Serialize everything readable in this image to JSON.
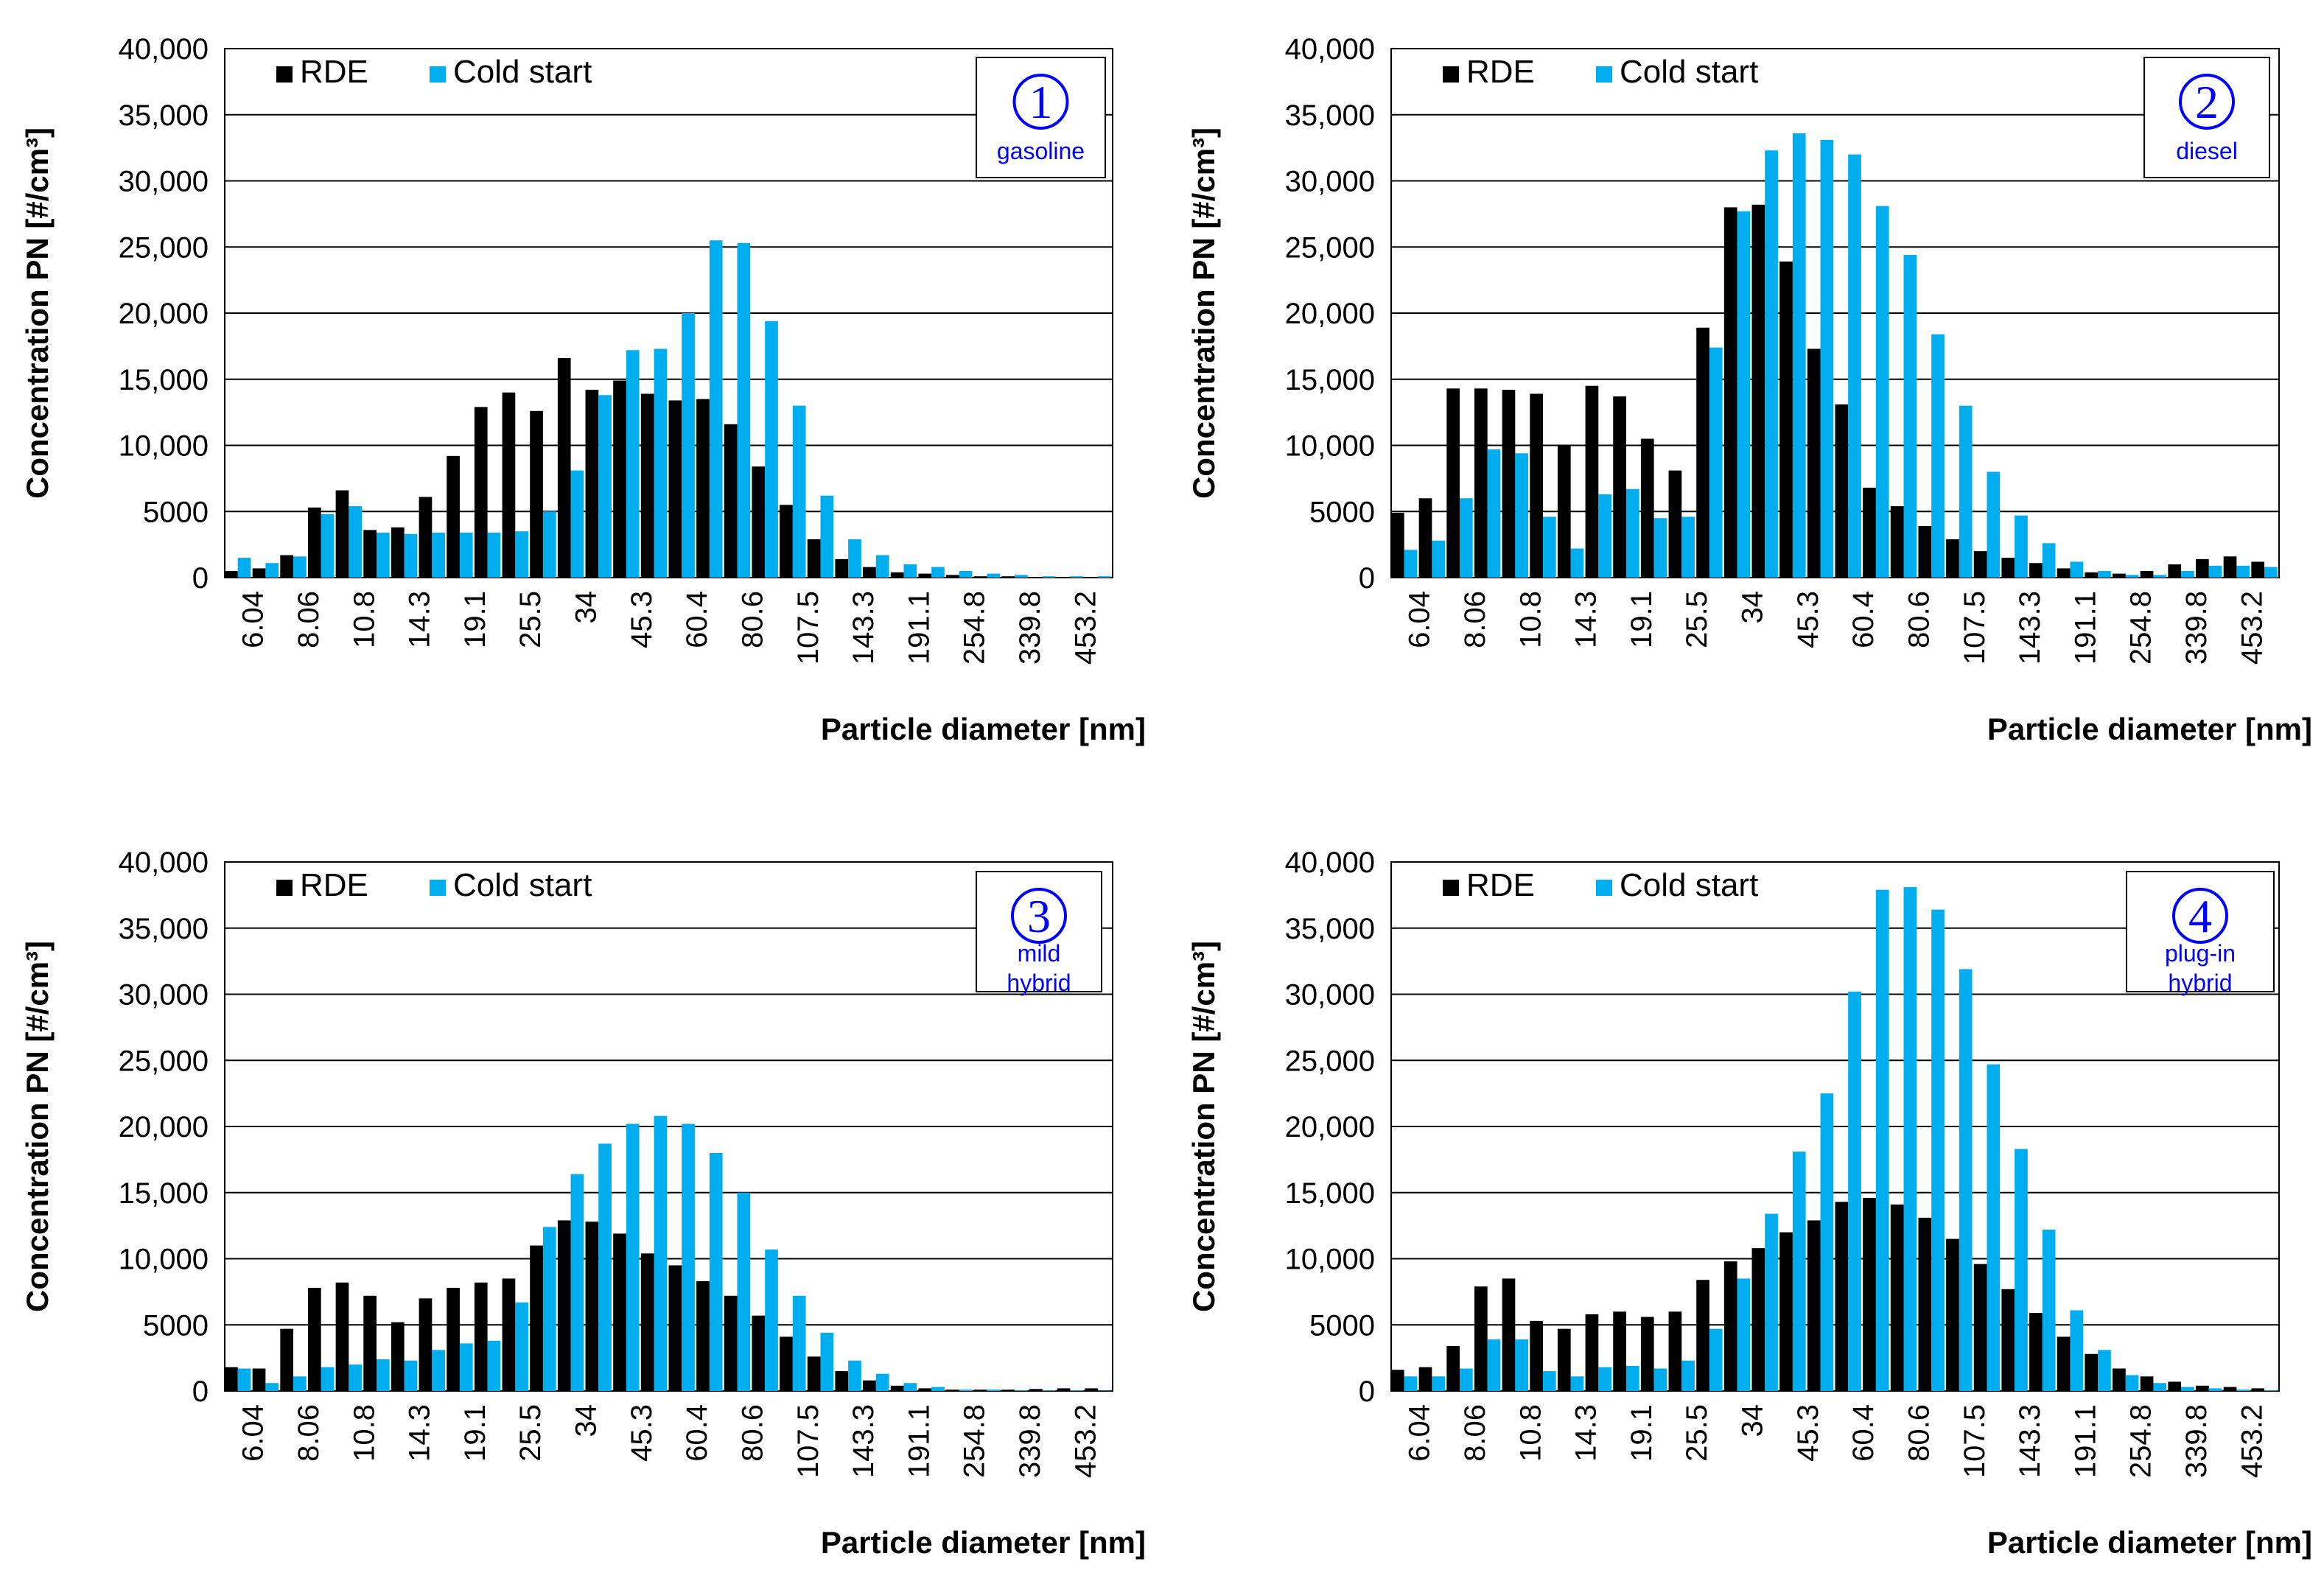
{
  "colors": {
    "rde": "#000000",
    "cold_start": "#00aeef",
    "badge": "#0000ff",
    "grid": "#000000"
  },
  "legend": {
    "rde_label": "RDE",
    "cold_start_label": "Cold start"
  },
  "chart_data": [
    {
      "type": "bar",
      "badge_number": "1",
      "badge_label": "gasoline",
      "ylabel": "Concentration PN [#/cm³]",
      "xlabel": "Particle diameter [nm]",
      "ylim": [
        0,
        40000
      ],
      "yticks": [
        "0",
        "5000",
        "10,000",
        "15,000",
        "20,000",
        "25,000",
        "30,000",
        "35,000",
        "40,000"
      ],
      "xtick_labels": [
        "6.04",
        "8.06",
        "10.8",
        "14.3",
        "19.1",
        "25.5",
        "34",
        "45.3",
        "60.4",
        "80.6",
        "107.5",
        "143.3",
        "191.1",
        "254.8",
        "339.8",
        "453.2"
      ],
      "series": [
        {
          "name": "RDE",
          "values": [
            500,
            700,
            1700,
            5300,
            6600,
            3600,
            3800,
            6100,
            9200,
            12900,
            14000,
            12600,
            16600,
            14200,
            14900,
            13900,
            13400,
            13500,
            11600,
            8400,
            5500,
            2900,
            1400,
            800,
            400,
            300,
            200,
            100,
            100,
            50,
            50,
            30
          ]
        },
        {
          "name": "Cold start",
          "values": [
            1500,
            1100,
            1600,
            4800,
            5400,
            3400,
            3300,
            3400,
            3400,
            3400,
            3500,
            5000,
            8100,
            13800,
            17200,
            17300,
            20000,
            25500,
            25300,
            19400,
            13000,
            6200,
            2900,
            1700,
            1000,
            800,
            500,
            300,
            200,
            100,
            100,
            100
          ]
        }
      ]
    },
    {
      "type": "bar",
      "badge_number": "2",
      "badge_label": "diesel",
      "ylabel": "Concentration PN [#/cm³]",
      "xlabel": "Particle diameter [nm]",
      "ylim": [
        0,
        40000
      ],
      "yticks": [
        "0",
        "5000",
        "10,000",
        "15,000",
        "20,000",
        "25,000",
        "30,000",
        "35,000",
        "40,000"
      ],
      "xtick_labels": [
        "6.04",
        "8.06",
        "10.8",
        "14.3",
        "19.1",
        "25.5",
        "34",
        "45.3",
        "60.4",
        "80.6",
        "107.5",
        "143.3",
        "191.1",
        "254.8",
        "339.8",
        "453.2"
      ],
      "series": [
        {
          "name": "RDE",
          "values": [
            4900,
            6000,
            14300,
            14300,
            14200,
            13900,
            10000,
            14500,
            13700,
            10500,
            8100,
            18900,
            28000,
            28200,
            23900,
            17300,
            13100,
            6800,
            5400,
            3900,
            2900,
            2000,
            1500,
            1100,
            700,
            400,
            300,
            500,
            1000,
            1400,
            1600,
            1200
          ]
        },
        {
          "name": "Cold start",
          "values": [
            2100,
            2800,
            6000,
            9700,
            9400,
            4600,
            2200,
            6300,
            6700,
            4500,
            4600,
            17400,
            27700,
            32300,
            33600,
            33100,
            32000,
            28100,
            24400,
            18400,
            13000,
            8000,
            4700,
            2600,
            1200,
            500,
            200,
            200,
            500,
            900,
            900,
            800
          ]
        }
      ]
    },
    {
      "type": "bar",
      "badge_number": "3",
      "badge_label": "mild hybrid",
      "badge_lines": [
        "mild",
        "hybrid"
      ],
      "ylabel": "Concentration PN [#/cm³]",
      "xlabel": "Particle diameter [nm]",
      "ylim": [
        0,
        40000
      ],
      "yticks": [
        "0",
        "5000",
        "10,000",
        "15,000",
        "20,000",
        "25,000",
        "30,000",
        "35,000",
        "40,000"
      ],
      "xtick_labels": [
        "6.04",
        "8.06",
        "10.8",
        "14.3",
        "19.1",
        "25.5",
        "34",
        "45.3",
        "60.4",
        "80.6",
        "107.5",
        "143.3",
        "191.1",
        "254.8",
        "339.8",
        "453.2"
      ],
      "series": [
        {
          "name": "RDE",
          "values": [
            1800,
            1700,
            4700,
            7800,
            8200,
            7200,
            5200,
            7000,
            7800,
            8200,
            8500,
            11000,
            12900,
            12800,
            11900,
            10400,
            9500,
            8300,
            7200,
            5700,
            4100,
            2600,
            1500,
            800,
            400,
            200,
            100,
            100,
            100,
            150,
            200,
            200
          ]
        },
        {
          "name": "Cold start",
          "values": [
            1700,
            600,
            1100,
            1800,
            2000,
            2400,
            2300,
            3100,
            3600,
            3800,
            6700,
            12400,
            16400,
            18700,
            20200,
            20800,
            20200,
            18000,
            15000,
            10700,
            7200,
            4400,
            2300,
            1300,
            600,
            300,
            100,
            100,
            50,
            50,
            50,
            30
          ]
        }
      ]
    },
    {
      "type": "bar",
      "badge_number": "4",
      "badge_label": "plug-in hybrid",
      "badge_lines": [
        "plug-in",
        "hybrid"
      ],
      "ylabel": "Concentration PN [#/cm³]",
      "xlabel": "Particle diameter [nm]",
      "ylim": [
        0,
        40000
      ],
      "yticks": [
        "0",
        "5000",
        "10,000",
        "15,000",
        "20,000",
        "25,000",
        "30,000",
        "35,000",
        "40,000"
      ],
      "xtick_labels": [
        "6.04",
        "8.06",
        "10.8",
        "14.3",
        "19.1",
        "25.5",
        "34",
        "45.3",
        "60.4",
        "80.6",
        "107.5",
        "143.3",
        "191.1",
        "254.8",
        "339.8",
        "453.2"
      ],
      "series": [
        {
          "name": "RDE",
          "values": [
            1600,
            1800,
            3400,
            7900,
            8500,
            5300,
            4700,
            5800,
            6000,
            5600,
            6000,
            8400,
            9800,
            10800,
            12000,
            12900,
            14300,
            14600,
            14100,
            13100,
            11500,
            9600,
            7700,
            5900,
            4100,
            2800,
            1700,
            1100,
            700,
            400,
            300,
            200
          ]
        },
        {
          "name": "Cold start",
          "values": [
            1100,
            1100,
            1700,
            3900,
            3900,
            1500,
            1100,
            1800,
            1900,
            1700,
            2300,
            4700,
            8500,
            13400,
            18100,
            22500,
            30200,
            37900,
            38100,
            36400,
            31900,
            24700,
            18300,
            12200,
            6100,
            3100,
            1200,
            600,
            300,
            200,
            100,
            50
          ]
        }
      ]
    }
  ]
}
